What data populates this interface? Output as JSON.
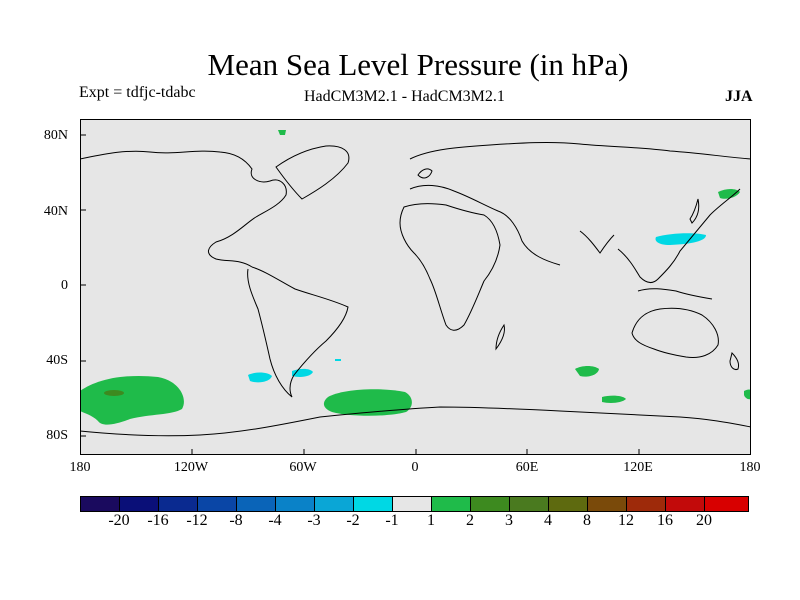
{
  "header": {
    "title": "Mean Sea Level Pressure (in hPa)",
    "experiment": "Expt = tdfjc-tdabc",
    "models": "HadCM3M2.1 - HadCM3M2.1",
    "season": "JJA"
  },
  "axes": {
    "lat_labels": [
      "80N",
      "40N",
      "0",
      "40S",
      "80S"
    ],
    "lon_labels": [
      "180",
      "120W",
      "60W",
      "0",
      "60E",
      "120E",
      "180"
    ]
  },
  "legend": {
    "labels": [
      "-20",
      "-16",
      "-12",
      "-8",
      "-4",
      "-3",
      "-2",
      "-1",
      "1",
      "2",
      "3",
      "4",
      "8",
      "12",
      "16",
      "20"
    ],
    "colors": [
      "#1a0a5e",
      "#0a0f78",
      "#0a2a90",
      "#0a46a6",
      "#0a64b8",
      "#0a82c8",
      "#0aa6d6",
      "#00d8e4",
      "#e6e6e6",
      "#1fbb4a",
      "#3d8a1f",
      "#4a7a1f",
      "#5e6a0f",
      "#7a4a0a",
      "#9e2a0a",
      "#c20a0a",
      "#d80000"
    ]
  },
  "colors": {
    "ocean": "#e6e6e6",
    "positive_1_2": "#1fbb4a",
    "positive_2_3": "#3d8a1f",
    "negative_2_1": "#00d8e4"
  }
}
